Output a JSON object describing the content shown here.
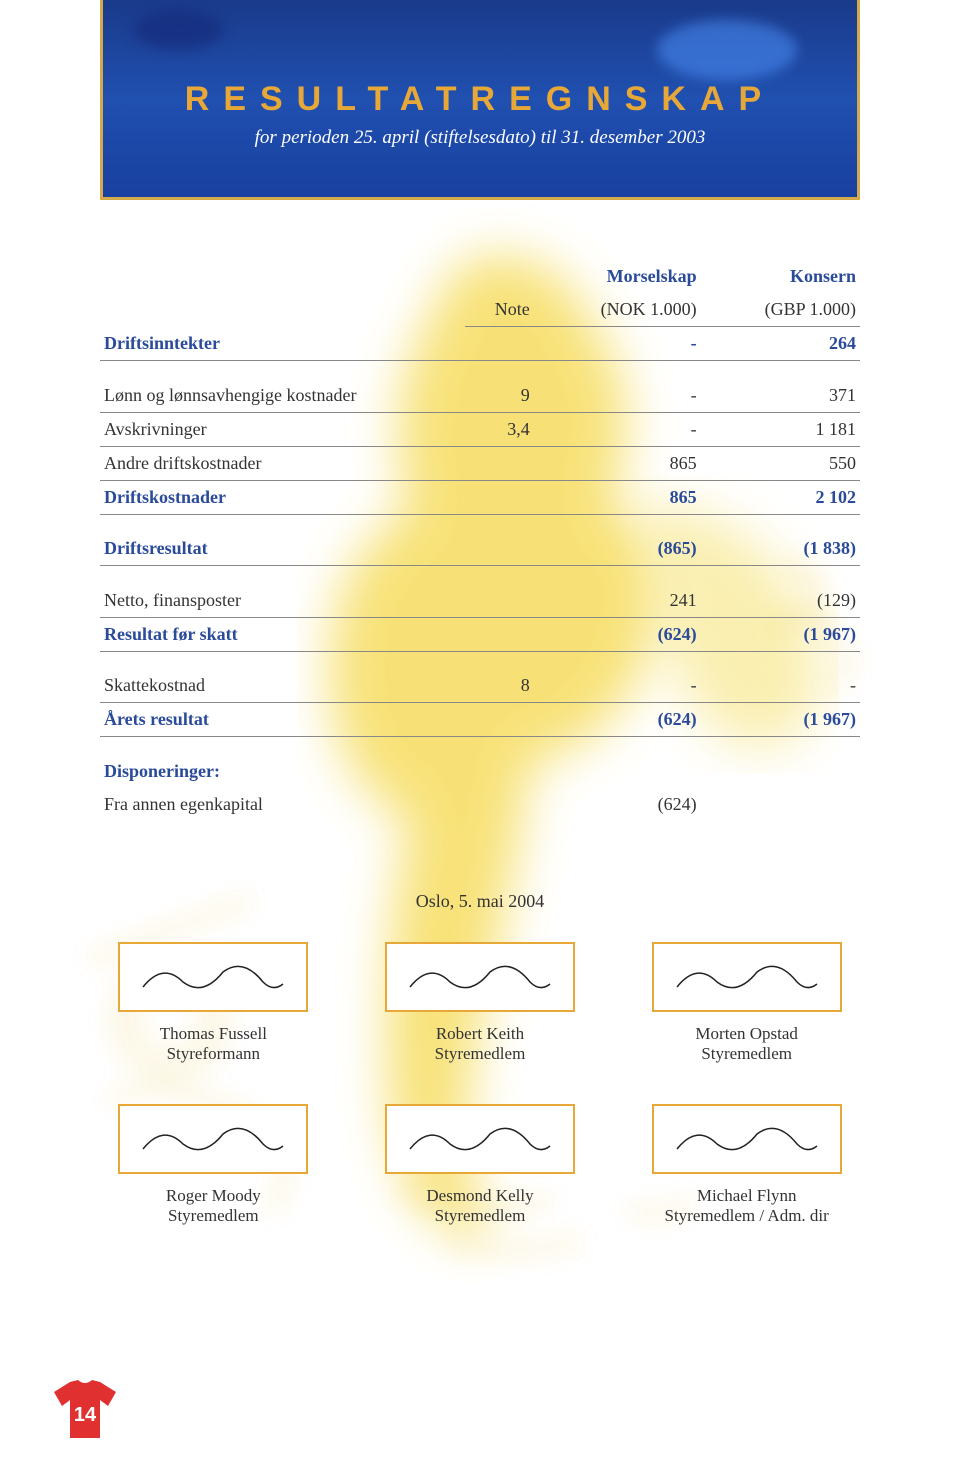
{
  "header": {
    "title": "RESULTATREGNSKAP",
    "subtitle": "for perioden 25. april (stiftelsesdato) til 31. desember 2003",
    "title_color": "#e8a838",
    "sub_color": "#ffffff",
    "band_bg_top": "#1a3a8a",
    "band_bg_mid": "#2050b0",
    "border_color": "#d4a94a"
  },
  "table": {
    "col_headers": {
      "note": "Note",
      "c1_top": "Morselskap",
      "c1_sub": "(NOK 1.000)",
      "c2_top": "Konsern",
      "c2_sub": "(GBP 1.000)"
    },
    "rows": [
      {
        "label": "Driftsinntekter",
        "note": "",
        "c1": "-",
        "c2": "264",
        "blue": true
      },
      {
        "gap": true
      },
      {
        "label": "Lønn og lønnsavhengige kostnader",
        "note": "9",
        "c1": "-",
        "c2": "371"
      },
      {
        "label": "Avskrivninger",
        "note": "3,4",
        "c1": "-",
        "c2": "1 181"
      },
      {
        "label": "Andre driftskostnader",
        "note": "",
        "c1": "865",
        "c2": "550"
      },
      {
        "label": "Driftskostnader",
        "note": "",
        "c1": "865",
        "c2": "2 102",
        "blue": true
      },
      {
        "gap": true
      },
      {
        "label": "Driftsresultat",
        "note": "",
        "c1": "(865)",
        "c2": "(1 838)",
        "blue": true
      },
      {
        "gap": true
      },
      {
        "label": "Netto, finansposter",
        "note": "",
        "c1": "241",
        "c2": "(129)"
      },
      {
        "label": "Resultat før skatt",
        "note": "",
        "c1": "(624)",
        "c2": "(1 967)",
        "blue": true
      },
      {
        "gap": true
      },
      {
        "label": "Skattekostnad",
        "note": "8",
        "c1": "-",
        "c2": "-"
      },
      {
        "label": "Årets resultat",
        "note": "",
        "c1": "(624)",
        "c2": "(1 967)",
        "blue": true
      },
      {
        "gap": true
      },
      {
        "label": "Disponeringer:",
        "note": "",
        "c1": "",
        "c2": "",
        "blue": true,
        "noborder": true
      },
      {
        "label": "Fra annen egenkapital",
        "note": "",
        "c1": "(624)",
        "c2": "",
        "noborder": true
      }
    ],
    "blue_color": "#2a4a9a",
    "rule_color": "#888888"
  },
  "date_line": "Oslo, 5. mai 2004",
  "signatures": [
    {
      "name": "Thomas Fussell",
      "role": "Styreformann"
    },
    {
      "name": "Robert Keith",
      "role": "Styremedlem"
    },
    {
      "name": "Morten Opstad",
      "role": "Styremedlem"
    },
    {
      "name": "Roger Moody",
      "role": "Styremedlem"
    },
    {
      "name": "Desmond Kelly",
      "role": "Styremedlem"
    },
    {
      "name": "Michael Flynn",
      "role": "Styremedlem / Adm. dir"
    }
  ],
  "sig_box_border": "#e8a838",
  "page_number": "14",
  "tshirt_color": "#e03030",
  "bg_art": {
    "yellow": "#f5d84a",
    "yellow_soft": "#f8e890"
  }
}
